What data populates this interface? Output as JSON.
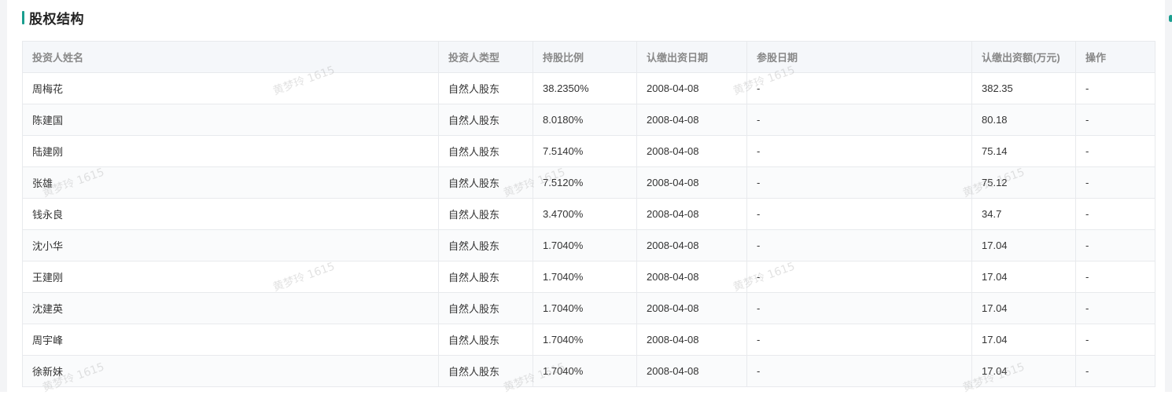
{
  "section": {
    "title": "股权结构"
  },
  "table": {
    "headers": [
      "投资人姓名",
      "投资人类型",
      "持股比例",
      "认缴出资日期",
      "参股日期",
      "认缴出资额(万元)",
      "操作"
    ],
    "rows": [
      [
        "周梅花",
        "自然人股东",
        "38.2350%",
        "2008-04-08",
        "-",
        "382.35",
        "-"
      ],
      [
        "陈建国",
        "自然人股东",
        "8.0180%",
        "2008-04-08",
        "-",
        "80.18",
        "-"
      ],
      [
        "陆建刚",
        "自然人股东",
        "7.5140%",
        "2008-04-08",
        "-",
        "75.14",
        "-"
      ],
      [
        "张雄",
        "自然人股东",
        "7.5120%",
        "2008-04-08",
        "-",
        "75.12",
        "-"
      ],
      [
        "钱永良",
        "自然人股东",
        "3.4700%",
        "2008-04-08",
        "-",
        "34.7",
        "-"
      ],
      [
        "沈小华",
        "自然人股东",
        "1.7040%",
        "2008-04-08",
        "-",
        "17.04",
        "-"
      ],
      [
        "王建刚",
        "自然人股东",
        "1.7040%",
        "2008-04-08",
        "-",
        "17.04",
        "-"
      ],
      [
        "沈建英",
        "自然人股东",
        "1.7040%",
        "2008-04-08",
        "-",
        "17.04",
        "-"
      ],
      [
        "周宇峰",
        "自然人股东",
        "1.7040%",
        "2008-04-08",
        "-",
        "17.04",
        "-"
      ],
      [
        "徐新妹",
        "自然人股东",
        "1.7040%",
        "2008-04-08",
        "-",
        "17.04",
        "-"
      ]
    ]
  },
  "watermark": {
    "text": "黄梦玲 1615"
  },
  "colors": {
    "accent": "#1a9e8f",
    "header_bg": "#f5f7fa",
    "border": "#e8eaed"
  }
}
